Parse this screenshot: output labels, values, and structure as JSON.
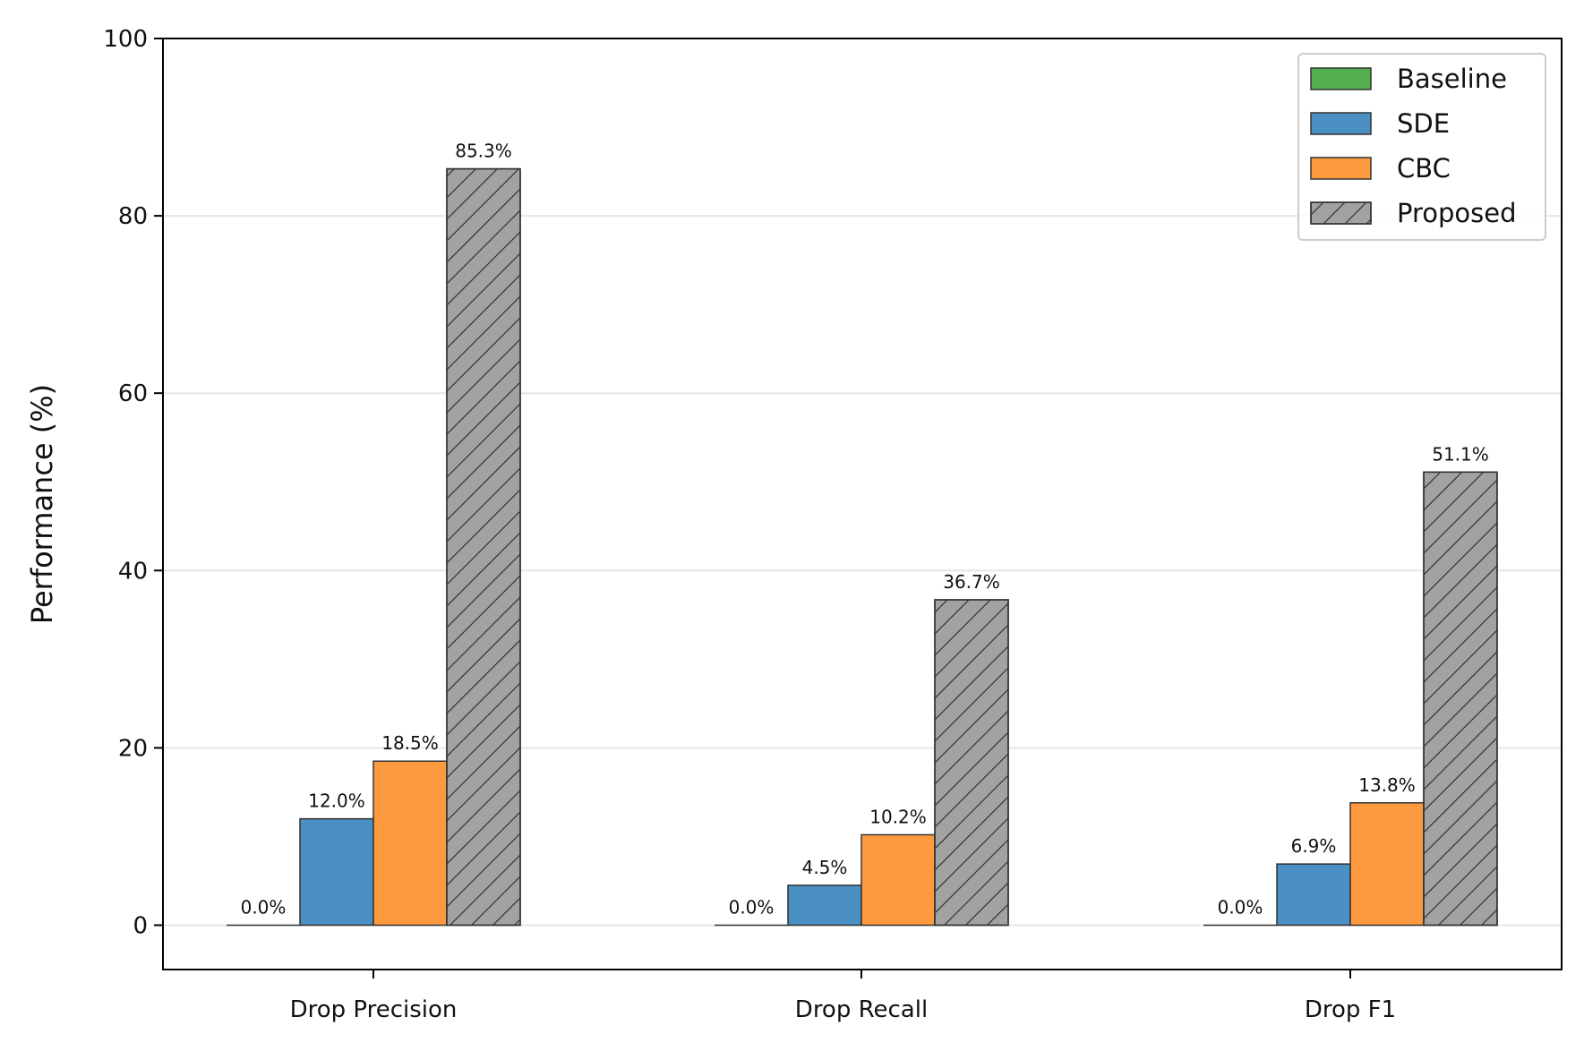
{
  "chart_data": {
    "type": "bar",
    "title": "",
    "xlabel": "",
    "ylabel": "Performance (%)",
    "categories": [
      "Drop Precision",
      "Drop Recall",
      "Drop F1"
    ],
    "series": [
      {
        "name": "Baseline",
        "values": [
          0.0,
          0.0,
          0.0
        ],
        "color": "#55b052",
        "hatch": false
      },
      {
        "name": "SDE",
        "values": [
          12.0,
          4.5,
          6.9
        ],
        "color": "#4a90c4",
        "hatch": false
      },
      {
        "name": "CBC",
        "values": [
          18.5,
          10.2,
          13.8
        ],
        "color": "#fd9a40",
        "hatch": false
      },
      {
        "name": "Proposed",
        "values": [
          85.3,
          36.7,
          51.1
        ],
        "color": "#a2a2a2",
        "hatch": true
      }
    ],
    "data_labels": [
      [
        "0.0%",
        "0.0%",
        "0.0%"
      ],
      [
        "12.0%",
        "4.5%",
        "6.9%"
      ],
      [
        "18.5%",
        "10.2%",
        "13.8%"
      ],
      [
        "85.3%",
        "36.7%",
        "51.1%"
      ]
    ],
    "ylim": [
      -5,
      100
    ],
    "yticks": [
      "0",
      "20",
      "40",
      "60",
      "80",
      "100"
    ],
    "grid": "y",
    "legend_position": "upper right"
  }
}
